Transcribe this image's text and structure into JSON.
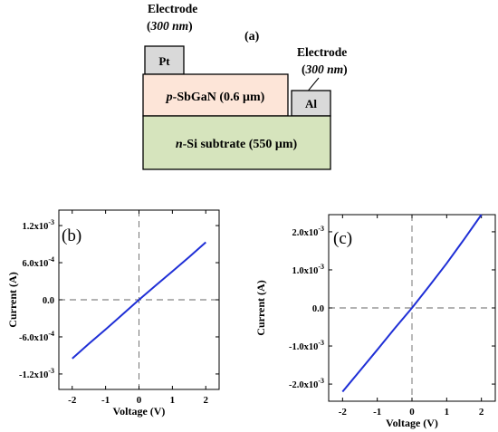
{
  "diagram": {
    "panel_label": "(a)",
    "left_electrode": {
      "title": "Electrode",
      "thickness": "300 nm",
      "material": "Pt"
    },
    "right_electrode": {
      "title": "Electrode",
      "thickness": "300 nm",
      "material": "Al"
    },
    "p_layer": {
      "prefix": "p",
      "label": "-SbGaN (0.6 μm)"
    },
    "n_layer": {
      "prefix": "n",
      "label": "-Si subtrate (550 μm)"
    },
    "colors": {
      "p_layer": "#fde5d8",
      "n_layer": "#d6e4bd",
      "electrode": "#d9d9d9"
    }
  },
  "chart_data": [
    {
      "type": "line",
      "panel_label": "(b)",
      "xlabel": "Voltage (V)",
      "ylabel": "Current (A)",
      "xlim": [
        -2.4,
        2.4
      ],
      "ylim": [
        -0.00145,
        0.00145
      ],
      "xticks": [
        -2,
        -1,
        0,
        1,
        2
      ],
      "xtick_labels": [
        "-2",
        "-1",
        "0",
        "1",
        "2"
      ],
      "yticks": [
        0.0012,
        0.0006,
        0,
        -0.0006,
        -0.0012
      ],
      "ytick_labels": [
        {
          "mantissa": "1.2x10",
          "exp": "-3"
        },
        {
          "mantissa": "6.0x10",
          "exp": "-4"
        },
        {
          "mantissa": "0.0",
          "exp": ""
        },
        {
          "mantissa": "-6.0x10",
          "exp": "-4"
        },
        {
          "mantissa": "-1.2x10",
          "exp": "-3"
        }
      ],
      "series": [
        {
          "x": [
            -2,
            -1.5,
            -1,
            -0.5,
            0,
            0.5,
            1,
            1.5,
            2
          ],
          "y": [
            -0.00095,
            -0.00071,
            -0.00048,
            -0.00024,
            0,
            0.00023,
            0.00046,
            0.00069,
            0.00093
          ]
        }
      ],
      "line_color": "#1f2fd6"
    },
    {
      "type": "line",
      "panel_label": "(c)",
      "xlabel": "Voltage (V)",
      "ylabel": "Current (A)",
      "xlim": [
        -2.4,
        2.4
      ],
      "ylim": [
        -0.00245,
        0.00245
      ],
      "xticks": [
        -2,
        -1,
        0,
        1,
        2
      ],
      "xtick_labels": [
        "-2",
        "-1",
        "0",
        "1",
        "2"
      ],
      "yticks": [
        0.002,
        0.001,
        0,
        -0.001,
        -0.002
      ],
      "ytick_labels": [
        {
          "mantissa": "2.0x10",
          "exp": "-3"
        },
        {
          "mantissa": "1.0x10",
          "exp": "-3"
        },
        {
          "mantissa": "0.0",
          "exp": ""
        },
        {
          "mantissa": "-1.0x10",
          "exp": "-3"
        },
        {
          "mantissa": "-2.0x10",
          "exp": "-3"
        }
      ],
      "series": [
        {
          "x": [
            -2,
            -1.5,
            -1,
            -0.5,
            0,
            0.5,
            1,
            1.5,
            2
          ],
          "y": [
            -0.0022,
            -0.00165,
            -0.0011,
            -0.00054,
            0,
            0.00058,
            0.00117,
            0.0018,
            0.00245
          ]
        }
      ],
      "line_color": "#1f2fd6"
    }
  ]
}
